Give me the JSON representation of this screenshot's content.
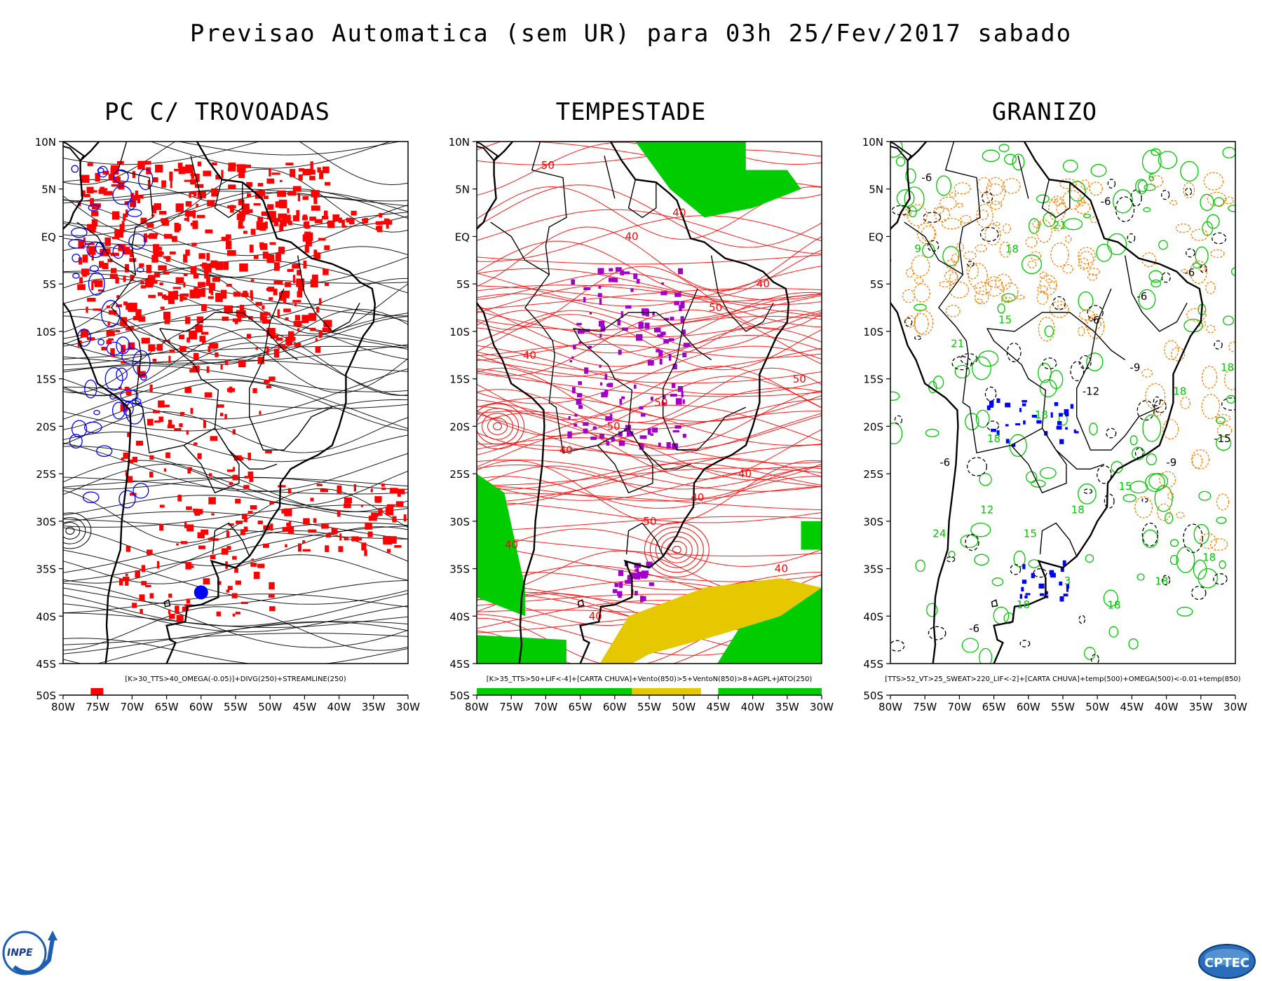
{
  "title": "Previsao Automatica (sem UR) para 03h 25/Fev/2017 sabado",
  "lon_labels": [
    "80W",
    "75W",
    "70W",
    "65W",
    "60W",
    "55W",
    "50W",
    "45W",
    "40W",
    "35W",
    "30W"
  ],
  "lat_labels": [
    "10N",
    "5N",
    "EQ",
    "5S",
    "10S",
    "15S",
    "20S",
    "25S",
    "30S",
    "35S",
    "40S",
    "45S",
    "50S"
  ],
  "panels": [
    {
      "title": "PC C/ TROVOADAS",
      "caption": "[K>30_TTS>40_OMEGA(-0.05)]+DIVG(250)+STREAMLINE(250)",
      "contour_labels": []
    },
    {
      "title": "TEMPESTADE",
      "caption": "[K>35_TTS>50+LIF<-4]+[CARTA CHUVA]+Vento(850)>5+VentoN(850)>8+AGPL+JATO(250)",
      "contour_labels": [
        "50",
        "40",
        "50",
        "50",
        "40",
        "50",
        "40",
        "40",
        "50",
        "40",
        "40",
        "40",
        "40",
        "40",
        "40",
        "50"
      ]
    },
    {
      "title": "GRANIZO",
      "caption": "[TTS>52_VT>25_SWEAT>220_LIF<-2]+[CARTA CHUVA]+temp(500)+OMEGA(500)<-0.01+temp(850)",
      "contour_labels": [
        "18",
        "15",
        "-6",
        "18",
        "-6",
        "18",
        "-6",
        "18",
        "18",
        "18",
        "18",
        "-6",
        "21",
        "-6",
        "18",
        "15",
        "18",
        "21",
        "-6",
        "-6",
        "18",
        "24",
        "-9",
        "-12",
        "15",
        "9",
        "6",
        "3",
        "12",
        "-15",
        "-9"
      ]
    }
  ],
  "logos": {
    "left": "INPE",
    "right": "CPTEC"
  },
  "colors": {
    "red_field": "#ff0000",
    "blue_contour": "#0000ff",
    "green_field": "#00cc00",
    "yellow_field": "#e6c800",
    "purple_field": "#a000c8",
    "orange_contour": "#ff7f00",
    "green_contour": "#00c800"
  }
}
